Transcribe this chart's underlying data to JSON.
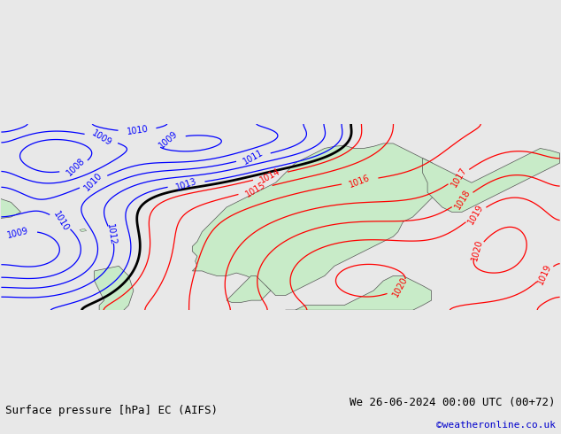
{
  "title_left": "Surface pressure [hPa] EC (AIFS)",
  "title_right": "We 26-06-2024 00:00 UTC (00+72)",
  "copyright": "©weatheronline.co.uk",
  "background_color": "#e8e8e8",
  "land_color": "#c8ebc8",
  "sea_color": "#e8e8e8",
  "isobar_color_blue": "#0000ff",
  "isobar_color_red": "#ff0000",
  "isobar_color_black": "#000000",
  "label_fontsize": 7,
  "title_fontsize": 9,
  "copyright_fontsize": 8,
  "figsize": [
    6.34,
    4.9
  ],
  "dpi": 100
}
